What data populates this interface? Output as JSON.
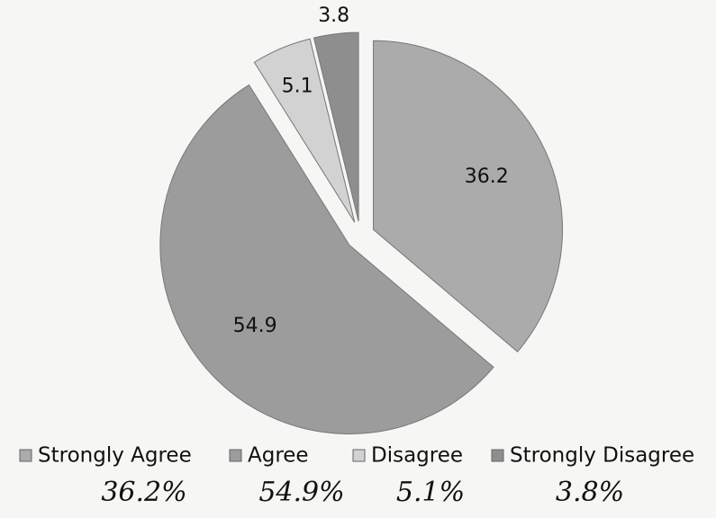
{
  "chart_data": {
    "type": "pie",
    "categories": [
      "Strongly Agree",
      "Agree",
      "Disagree",
      "Strongly Disagree"
    ],
    "values": [
      36.2,
      54.9,
      5.1,
      3.8
    ],
    "colors": [
      "#ababab",
      "#9c9c9c",
      "#d2d2d2",
      "#8e8e8e"
    ],
    "exploded": true,
    "legend": "bottom",
    "annotations": [
      "36.2%",
      "54.9%",
      "5.1%",
      "3.8%"
    ]
  }
}
